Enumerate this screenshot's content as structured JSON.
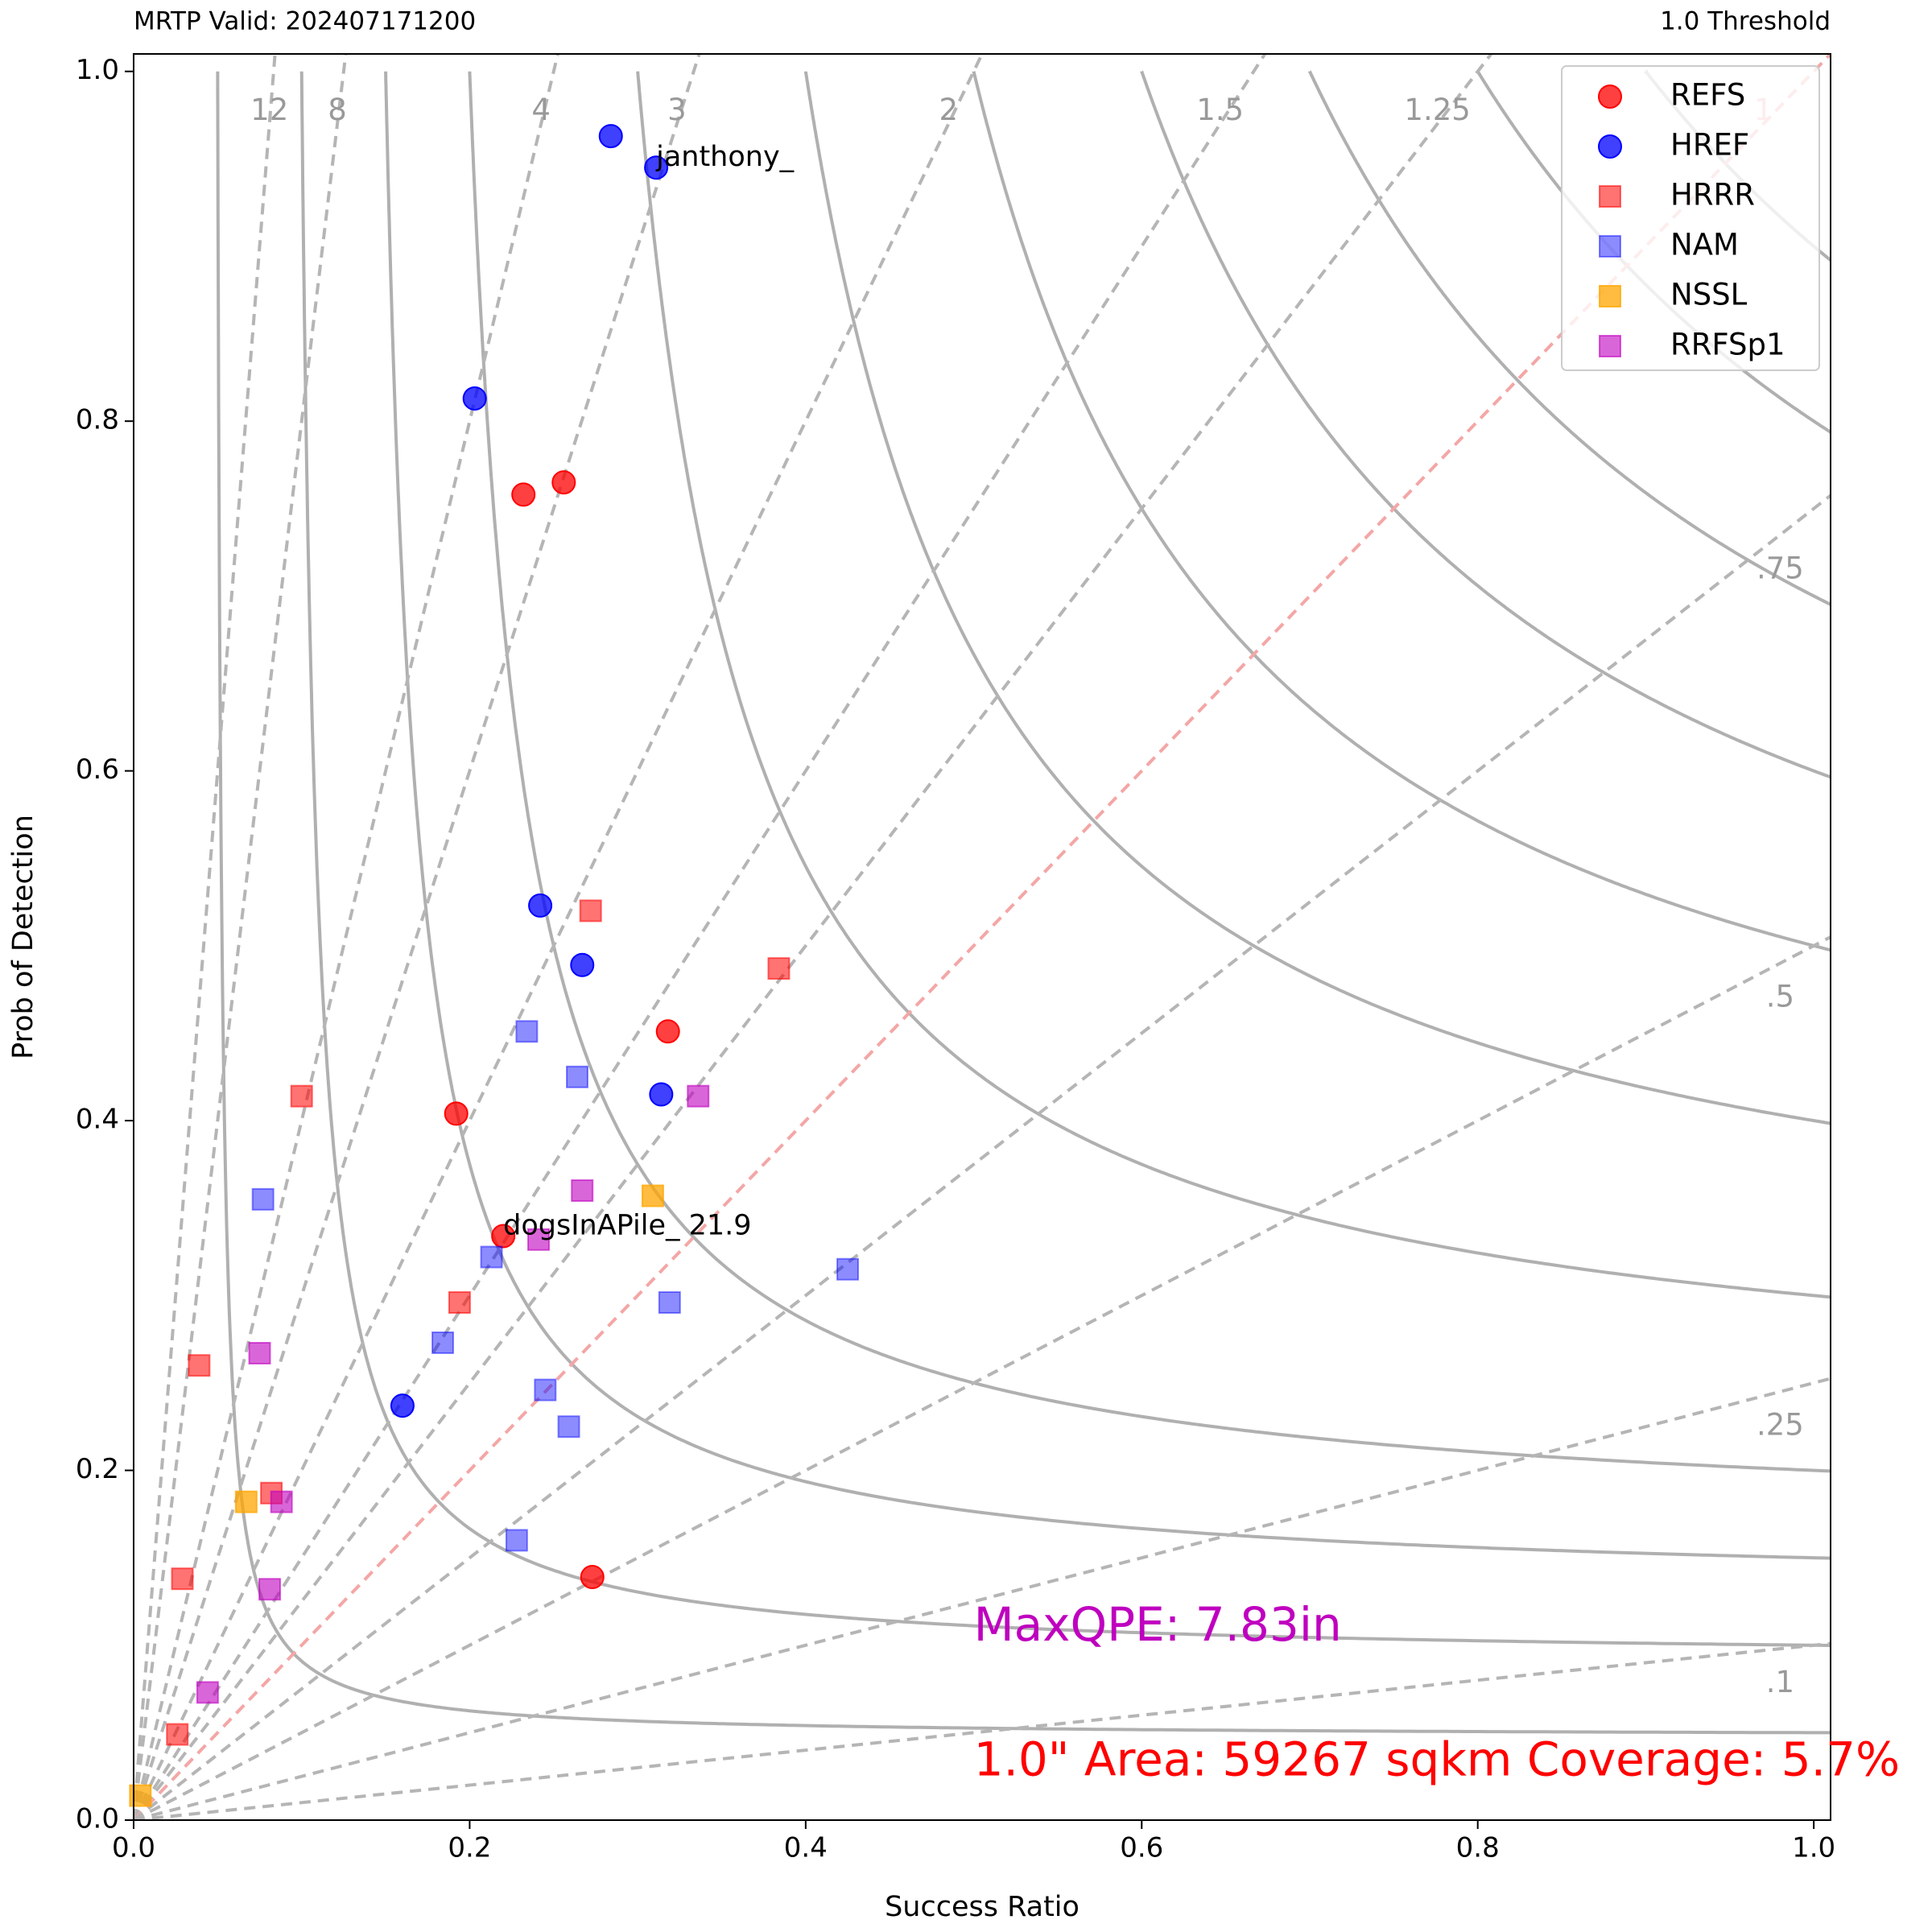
{
  "chart_data": {
    "type": "scatter",
    "title_left": "MRTP Valid: 202407171200",
    "title_right": "1.0 Threshold",
    "xlabel": "Success Ratio",
    "ylabel": "Prob of Detection",
    "xlim": [
      0,
      1.01
    ],
    "ylim": [
      0,
      1.01
    ],
    "xticks": [
      {
        "value": 0,
        "label": "0.0"
      },
      {
        "value": 0.2,
        "label": "0.2"
      },
      {
        "value": 0.4,
        "label": "0.4"
      },
      {
        "value": 0.6,
        "label": "0.6"
      },
      {
        "value": 0.8,
        "label": "0.8"
      },
      {
        "value": 1,
        "label": "1.0"
      }
    ],
    "yticks": [
      {
        "value": 0,
        "label": "0.0"
      },
      {
        "value": 0.2,
        "label": "0.2"
      },
      {
        "value": 0.4,
        "label": "0.4"
      },
      {
        "value": 0.6,
        "label": "0.6"
      },
      {
        "value": 0.8,
        "label": "0.8"
      },
      {
        "value": 1,
        "label": "1.0"
      }
    ],
    "bias_lines": [
      {
        "value": 12,
        "label": "12"
      },
      {
        "value": 8,
        "label": "8"
      },
      {
        "value": 4,
        "label": "4"
      },
      {
        "value": 3,
        "label": "3"
      },
      {
        "value": 2,
        "label": "2"
      },
      {
        "value": 1.5,
        "label": "1.5"
      },
      {
        "value": 1.25,
        "label": "1.25"
      },
      {
        "value": 1,
        "label": "1"
      },
      {
        "value": 0.75,
        "label": ".75"
      },
      {
        "value": 0.5,
        "label": ".5"
      },
      {
        "value": 0.25,
        "label": ".25"
      },
      {
        "value": 0.1,
        "label": ".1"
      }
    ],
    "legend": "upper right",
    "series": [
      {
        "name": "REFS",
        "color": "red",
        "marker": "o",
        "alpha": 0.75,
        "x": [
          0.232,
          0.256,
          0.318,
          0.192,
          0.22,
          0.273
        ],
        "values": [
          0.758,
          0.765,
          0.451,
          0.404,
          0.334,
          0.139
        ]
      },
      {
        "name": "HREF",
        "color": "blue",
        "marker": "o",
        "alpha": 0.75,
        "x": [
          0.284,
          0.311,
          0.203,
          0.242,
          0.267,
          0.314,
          0.16
        ],
        "values": [
          0.963,
          0.945,
          0.813,
          0.523,
          0.489,
          0.415,
          0.237
        ]
      },
      {
        "name": "HRRR",
        "color": "red",
        "marker": "s",
        "alpha": 0.55,
        "x": [
          0.272,
          0.384,
          0.1,
          0.194,
          0.039,
          0.082,
          0.029,
          0.026
        ],
        "values": [
          0.52,
          0.487,
          0.414,
          0.296,
          0.26,
          0.187,
          0.138,
          0.049
        ]
      },
      {
        "name": "NAM",
        "color": "blue",
        "marker": "s",
        "alpha": 0.45,
        "x": [
          0.234,
          0.264,
          0.077,
          0.213,
          0.184,
          0.319,
          0.425,
          0.245,
          0.259,
          0.228
        ],
        "values": [
          0.451,
          0.425,
          0.355,
          0.322,
          0.273,
          0.296,
          0.315,
          0.246,
          0.225,
          0.16
        ]
      },
      {
        "name": "NSSL",
        "color": "orange",
        "marker": "s",
        "alpha": 0.75,
        "x": [
          0.309,
          0.067,
          0.004
        ],
        "values": [
          0.357,
          0.182,
          0.014
        ]
      },
      {
        "name": "RRFSp1",
        "color": "#bf00bf",
        "marker": "s",
        "alpha": 0.6,
        "x": [
          0.336,
          0.267,
          0.241,
          0.075,
          0.088,
          0.081,
          0.044
        ],
        "values": [
          0.414,
          0.36,
          0.332,
          0.267,
          0.182,
          0.132,
          0.073
        ]
      }
    ],
    "annotations": [
      "janthony_",
      "dogsInAPile_ 21.9"
    ],
    "notes": [
      {
        "text": "MaxQPE: 7.83in",
        "color": "#bf00bf"
      },
      {
        "text": "1.0\" Area: 59267 sqkm Coverage: 5.7%",
        "color": "red"
      }
    ]
  }
}
